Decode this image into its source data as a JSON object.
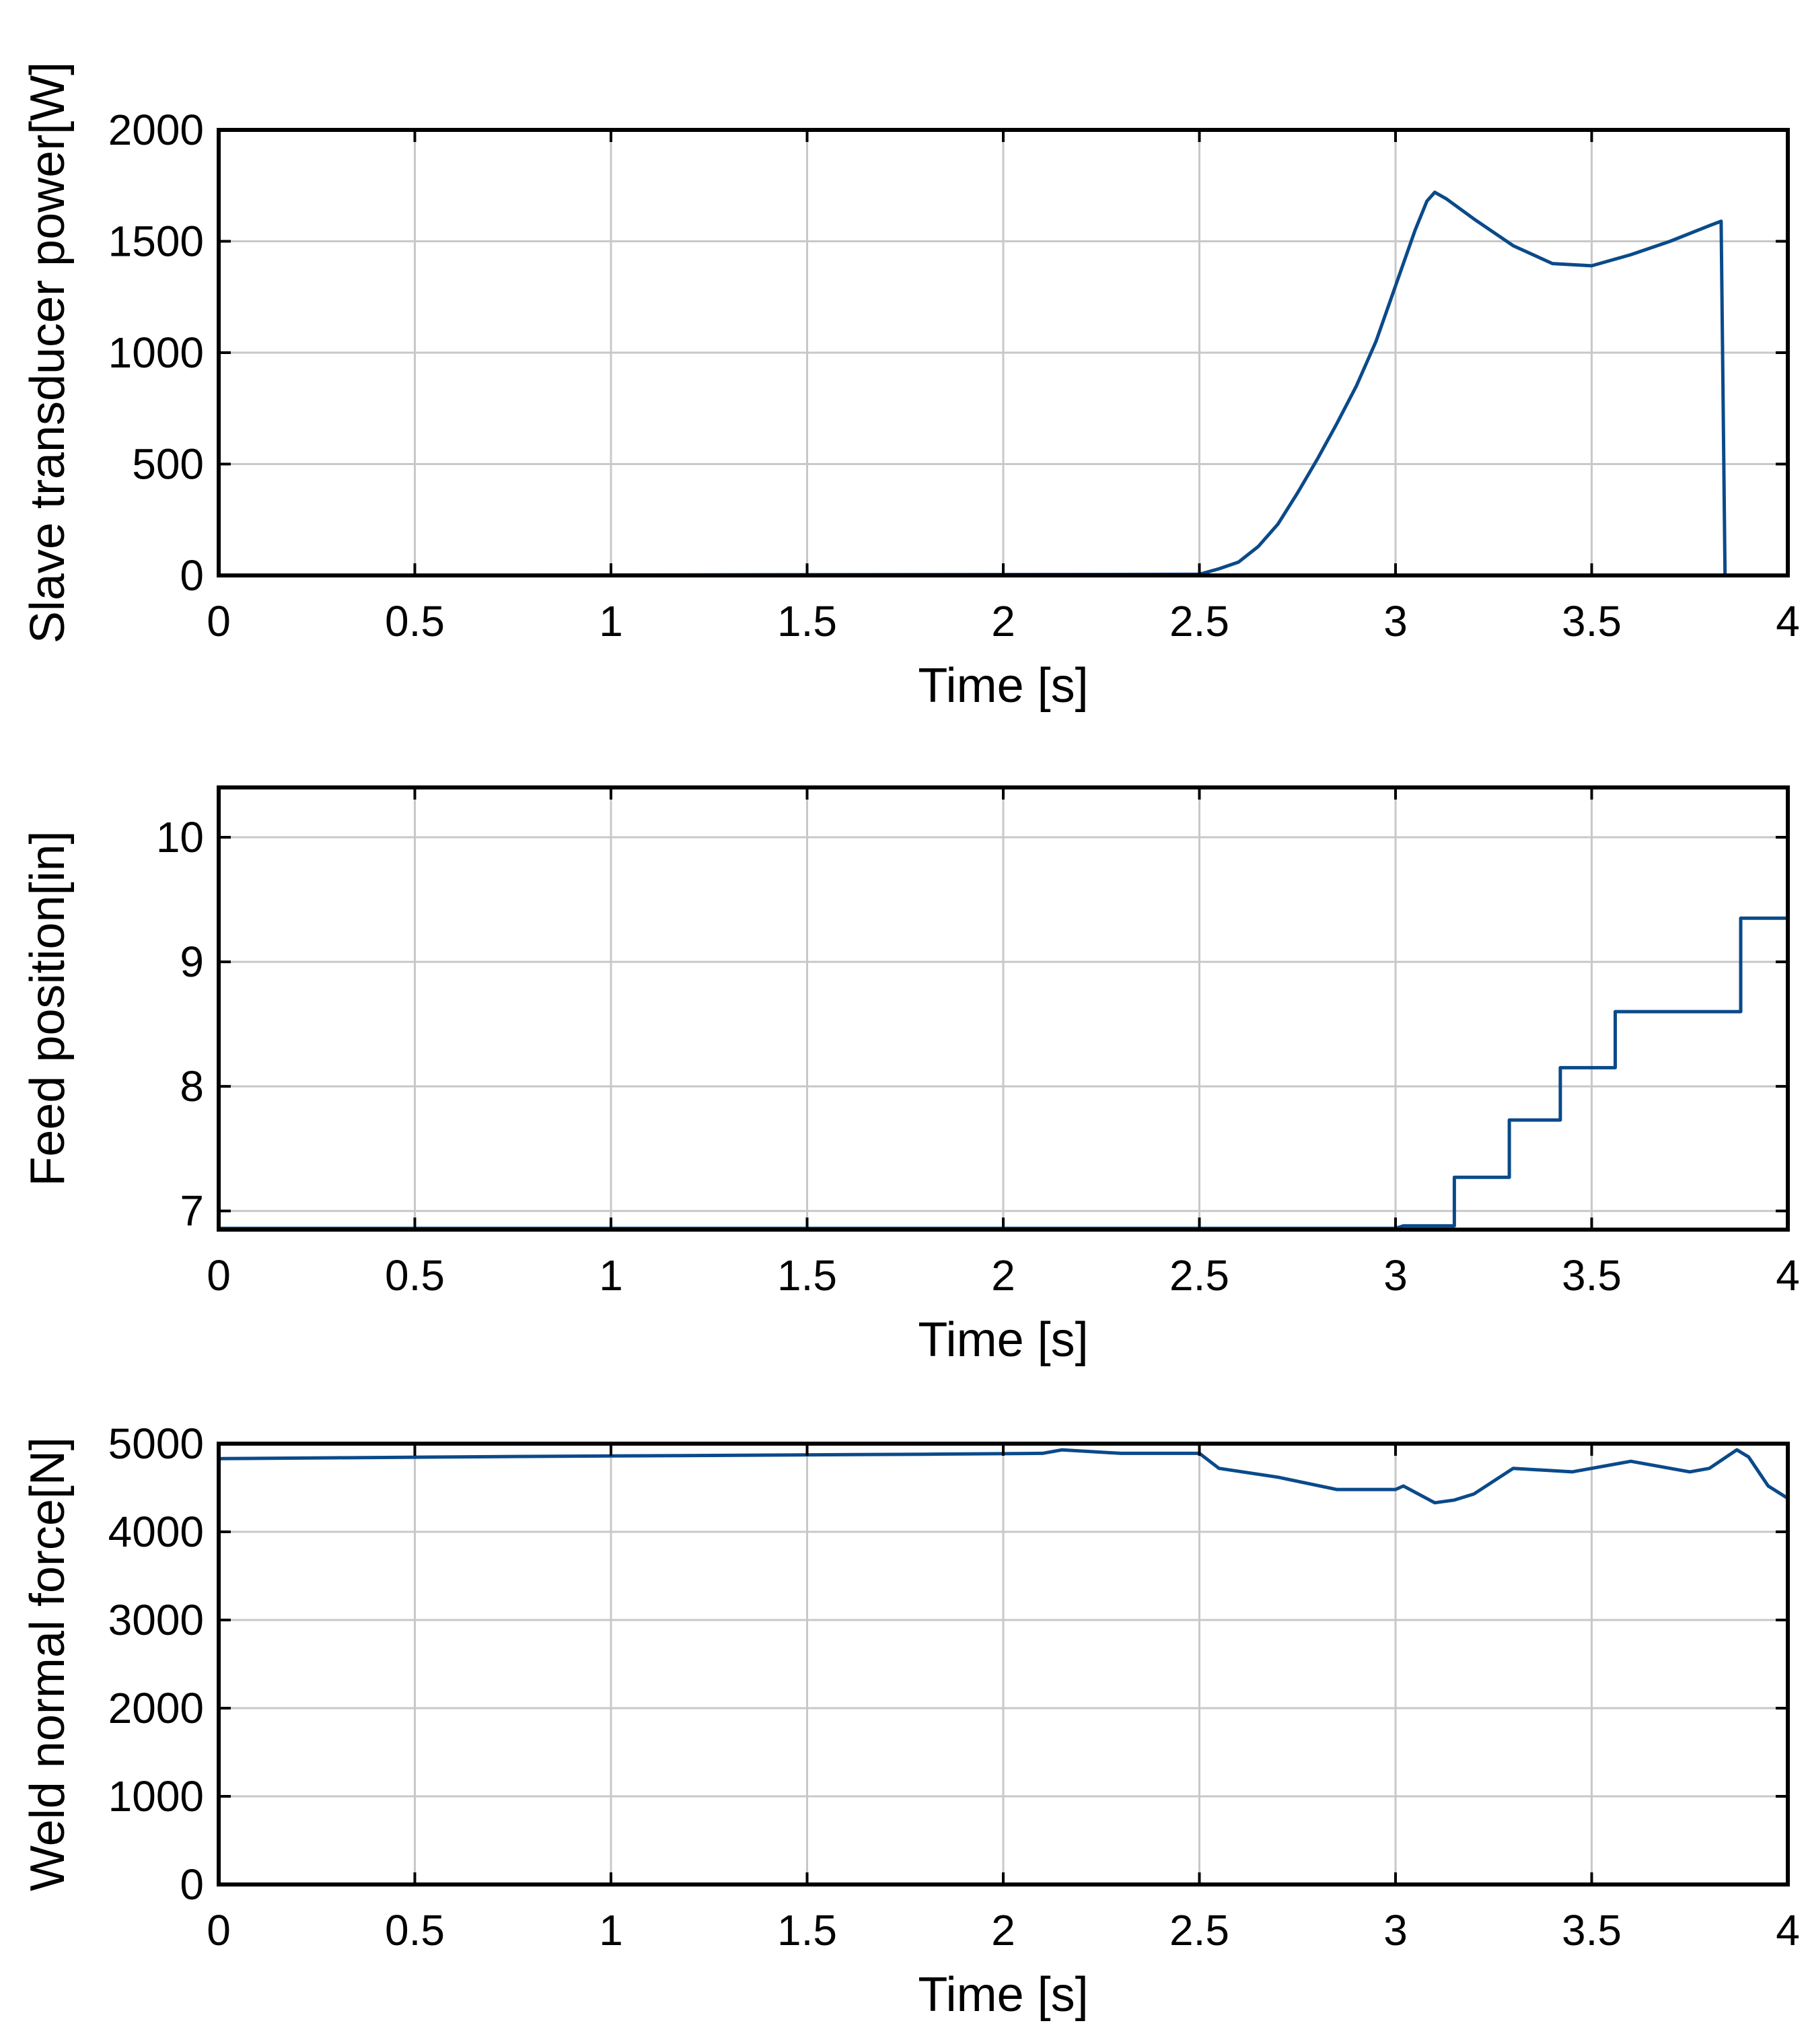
{
  "chart_data": [
    {
      "type": "line",
      "title": "",
      "xlabel": "Time [s]",
      "ylabel": "Slave transducer power[W]",
      "xlim": [
        0,
        4
      ],
      "ylim": [
        0,
        2000
      ],
      "xticks": [
        0,
        0.5,
        1,
        1.5,
        2,
        2.5,
        3,
        3.5,
        4
      ],
      "yticks": [
        0,
        500,
        1000,
        1500,
        2000
      ],
      "xtick_labels": [
        "0",
        "0.5",
        "1",
        "1.5",
        "2",
        "2.5",
        "3",
        "3.5",
        "4"
      ],
      "ytick_labels": [
        "0",
        "500",
        "1000",
        "1500",
        "2000"
      ],
      "grid": true,
      "series": [
        {
          "name": "power",
          "color": "#0a4a8a",
          "x": [
            0,
            2.5,
            2.55,
            2.6,
            2.65,
            2.7,
            2.75,
            2.8,
            2.85,
            2.9,
            2.95,
            3.0,
            3.05,
            3.08,
            3.1,
            3.13,
            3.2,
            3.3,
            3.4,
            3.5,
            3.6,
            3.7,
            3.8,
            3.83,
            3.84,
            4.0
          ],
          "y": [
            0,
            5,
            30,
            60,
            130,
            230,
            370,
            520,
            680,
            850,
            1050,
            1300,
            1550,
            1680,
            1720,
            1690,
            1600,
            1480,
            1400,
            1390,
            1440,
            1500,
            1570,
            1590,
            0,
            0
          ]
        }
      ]
    },
    {
      "type": "line",
      "title": "",
      "xlabel": "Time [s]",
      "ylabel": "Feed position[in]",
      "xlim": [
        0,
        4
      ],
      "ylim": [
        6.85,
        10.4
      ],
      "xticks": [
        0,
        0.5,
        1,
        1.5,
        2,
        2.5,
        3,
        3.5,
        4
      ],
      "yticks": [
        7,
        8,
        9,
        10
      ],
      "xtick_labels": [
        "0",
        "0.5",
        "1",
        "1.5",
        "2",
        "2.5",
        "3",
        "3.5",
        "4"
      ],
      "ytick_labels": [
        "7",
        "8",
        "9",
        "10"
      ],
      "grid": true,
      "series": [
        {
          "name": "feed",
          "color": "#0a4a8a",
          "x": [
            0,
            3.0,
            3.02,
            3.15,
            3.15,
            3.29,
            3.29,
            3.42,
            3.42,
            3.56,
            3.56,
            3.88,
            3.88,
            4.0
          ],
          "y": [
            6.86,
            6.86,
            6.88,
            6.88,
            7.27,
            7.27,
            7.73,
            7.73,
            8.15,
            8.15,
            8.6,
            8.6,
            9.35,
            9.35
          ]
        }
      ]
    },
    {
      "type": "line",
      "title": "",
      "xlabel": "Time [s]",
      "ylabel": "Weld normal force[N]",
      "xlim": [
        0,
        4
      ],
      "ylim": [
        0,
        5000
      ],
      "xticks": [
        0,
        0.5,
        1,
        1.5,
        2,
        2.5,
        3,
        3.5,
        4
      ],
      "yticks": [
        0,
        1000,
        2000,
        3000,
        4000,
        5000
      ],
      "xtick_labels": [
        "0",
        "0.5",
        "1",
        "1.5",
        "2",
        "2.5",
        "3",
        "3.5",
        "4"
      ],
      "ytick_labels": [
        "0",
        "1000",
        "2000",
        "3000",
        "4000",
        "5000"
      ],
      "grid": true,
      "series": [
        {
          "name": "force",
          "color": "#0a4a8a",
          "x": [
            0,
            0.3,
            0.6,
            1.0,
            1.4,
            1.8,
            2.1,
            2.15,
            2.3,
            2.5,
            2.55,
            2.7,
            2.85,
            3.0,
            3.02,
            3.1,
            3.15,
            3.2,
            3.3,
            3.45,
            3.6,
            3.75,
            3.8,
            3.87,
            3.9,
            3.95,
            4.0
          ],
          "y": [
            4830,
            4840,
            4850,
            4860,
            4870,
            4880,
            4890,
            4930,
            4890,
            4890,
            4720,
            4620,
            4480,
            4480,
            4520,
            4330,
            4360,
            4430,
            4720,
            4680,
            4800,
            4680,
            4720,
            4930,
            4850,
            4520,
            4380
          ]
        }
      ]
    }
  ]
}
